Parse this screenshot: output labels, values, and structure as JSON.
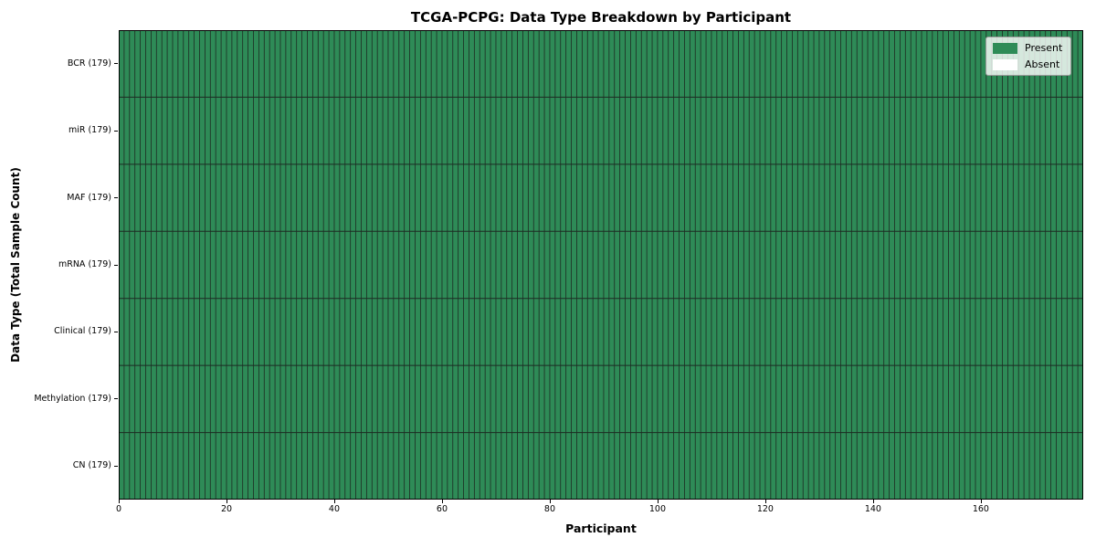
{
  "chart_data": {
    "type": "heatmap",
    "title": "TCGA-PCPG: Data Type Breakdown by Participant",
    "xlabel": "Participant",
    "ylabel": "Data Type (Total Sample Count)",
    "x_ticks": [
      0,
      20,
      40,
      60,
      80,
      100,
      120,
      140,
      160
    ],
    "xlim": [
      0,
      179
    ],
    "n_participants": 179,
    "rows": [
      {
        "label": "BCR (179)",
        "data_type": "BCR",
        "total": 179,
        "present": 179,
        "absent": 0
      },
      {
        "label": "miR (179)",
        "data_type": "miR",
        "total": 179,
        "present": 179,
        "absent": 0
      },
      {
        "label": "MAF (179)",
        "data_type": "MAF",
        "total": 179,
        "present": 179,
        "absent": 0
      },
      {
        "label": "mRNA (179)",
        "data_type": "mRNA",
        "total": 179,
        "present": 179,
        "absent": 0
      },
      {
        "label": "Clinical (179)",
        "data_type": "Clinical",
        "total": 179,
        "present": 179,
        "absent": 0
      },
      {
        "label": "Methylation (179)",
        "data_type": "Methylation",
        "total": 179,
        "present": 179,
        "absent": 0
      },
      {
        "label": "CN (179)",
        "data_type": "CN",
        "total": 179,
        "present": 179,
        "absent": 0
      }
    ],
    "legend": [
      {
        "label": "Present",
        "color": "#2e8b57"
      },
      {
        "label": "Absent",
        "color": "#ffffff"
      }
    ],
    "legend_position": "upper right",
    "colors": {
      "present": "#2e8b57",
      "absent": "#ffffff",
      "cell_edge": "#1d2b22",
      "spine": "#000000"
    },
    "grid": false
  }
}
